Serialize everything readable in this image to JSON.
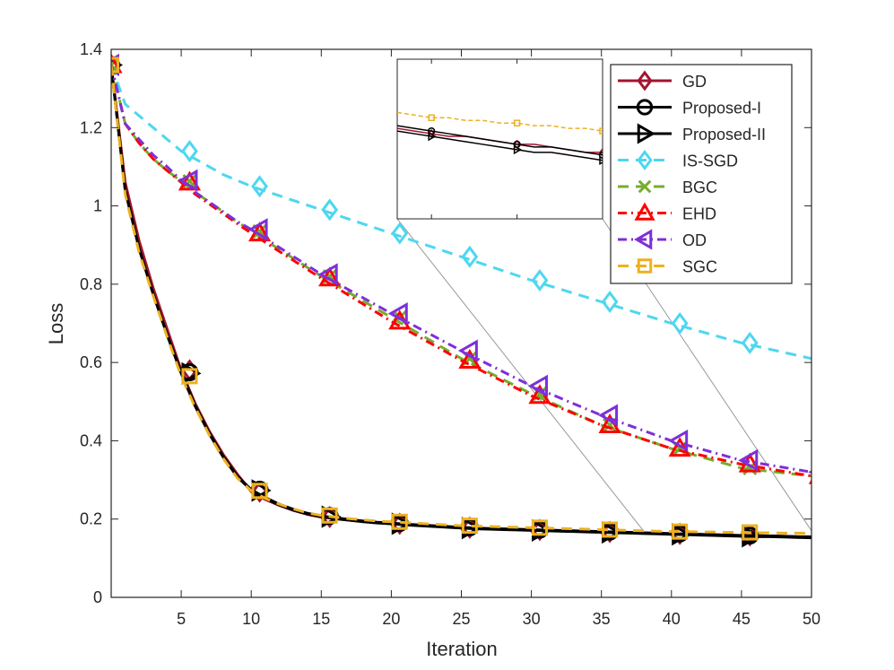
{
  "chart_data": {
    "type": "line",
    "xlabel": "Iteration",
    "ylabel": "Loss",
    "xlim": [
      0,
      50
    ],
    "ylim": [
      0,
      1.4
    ],
    "xticks": [
      5,
      10,
      15,
      20,
      25,
      30,
      35,
      40,
      45,
      50
    ],
    "yticks": [
      0,
      0.2,
      0.4,
      0.6,
      0.8,
      1,
      1.2,
      1.4
    ],
    "ytick_labels": [
      "0",
      "0.2",
      "0.4",
      "0.6",
      "0.8",
      "1",
      "1.2",
      "1.4"
    ],
    "legend_position": "top-right",
    "inset": {
      "xlim": [
        38,
        50
      ],
      "ylim": [
        0.13,
        0.19
      ],
      "position": "top-center"
    },
    "x": [
      0,
      1,
      2,
      3,
      4,
      5,
      6,
      7,
      8,
      9,
      10,
      11,
      12,
      13,
      14,
      15,
      16,
      17,
      18,
      19,
      20,
      21,
      22,
      23,
      24,
      25,
      26,
      27,
      28,
      29,
      30,
      31,
      32,
      33,
      34,
      35,
      36,
      37,
      38,
      39,
      40,
      41,
      42,
      43,
      44,
      45,
      46,
      47,
      48,
      49,
      50
    ],
    "marker_x": [
      0,
      5,
      10,
      15,
      20,
      25,
      30,
      35,
      40,
      45,
      50
    ],
    "series": [
      {
        "name": "GD",
        "color": "#a2142f",
        "dash": "",
        "marker": "diamond",
        "values": [
          1.36,
          1.06,
          0.91,
          0.79,
          0.685,
          0.58,
          0.495,
          0.425,
          0.365,
          0.315,
          0.27,
          0.25,
          0.235,
          0.222,
          0.212,
          0.205,
          0.201,
          0.197,
          0.194,
          0.191,
          0.188,
          0.186,
          0.184,
          0.182,
          0.18,
          0.178,
          0.176,
          0.175,
          0.174,
          0.173,
          0.172,
          0.171,
          0.17,
          0.169,
          0.168,
          0.167,
          0.166,
          0.165,
          0.164,
          0.163,
          0.162,
          0.161,
          0.161,
          0.16,
          0.159,
          0.158,
          0.158,
          0.157,
          0.156,
          0.155,
          0.155
        ]
      },
      {
        "name": "Proposed-I",
        "color": "#000000",
        "dash": "",
        "marker": "circle",
        "values": [
          1.36,
          1.04,
          0.89,
          0.775,
          0.67,
          0.575,
          0.49,
          0.42,
          0.36,
          0.31,
          0.275,
          0.255,
          0.238,
          0.225,
          0.215,
          0.208,
          0.203,
          0.199,
          0.195,
          0.192,
          0.19,
          0.187,
          0.185,
          0.183,
          0.181,
          0.179,
          0.177,
          0.176,
          0.175,
          0.174,
          0.173,
          0.172,
          0.171,
          0.17,
          0.169,
          0.168,
          0.167,
          0.166,
          0.165,
          0.164,
          0.163,
          0.162,
          0.161,
          0.16,
          0.159,
          0.158,
          0.157,
          0.157,
          0.156,
          0.155,
          0.154
        ]
      },
      {
        "name": "Proposed-II",
        "color": "#000000",
        "dash": "",
        "marker": "triangle-right",
        "values": [
          1.36,
          1.04,
          0.89,
          0.775,
          0.67,
          0.572,
          0.488,
          0.418,
          0.358,
          0.308,
          0.273,
          0.253,
          0.236,
          0.223,
          0.213,
          0.206,
          0.201,
          0.197,
          0.193,
          0.19,
          0.188,
          0.185,
          0.183,
          0.181,
          0.179,
          0.177,
          0.175,
          0.174,
          0.173,
          0.172,
          0.171,
          0.17,
          0.169,
          0.168,
          0.167,
          0.166,
          0.165,
          0.164,
          0.163,
          0.162,
          0.161,
          0.16,
          0.159,
          0.158,
          0.157,
          0.156,
          0.155,
          0.155,
          0.154,
          0.153,
          0.152
        ]
      },
      {
        "name": "IS-SGD",
        "color": "#4dd7f0",
        "dash": "12,8",
        "marker": "diamond",
        "values": [
          1.36,
          1.26,
          1.23,
          1.2,
          1.17,
          1.14,
          1.12,
          1.1,
          1.08,
          1.065,
          1.05,
          1.038,
          1.026,
          1.014,
          1.002,
          0.99,
          0.978,
          0.966,
          0.954,
          0.942,
          0.93,
          0.918,
          0.906,
          0.894,
          0.882,
          0.87,
          0.858,
          0.846,
          0.834,
          0.822,
          0.81,
          0.799,
          0.788,
          0.777,
          0.766,
          0.755,
          0.744,
          0.733,
          0.722,
          0.711,
          0.7,
          0.69,
          0.68,
          0.67,
          0.66,
          0.65,
          0.642,
          0.634,
          0.626,
          0.618,
          0.61
        ]
      },
      {
        "name": "BGC",
        "color": "#77ac30",
        "dash": "12,8",
        "marker": "cross",
        "values": [
          1.36,
          1.21,
          1.16,
          1.12,
          1.09,
          1.063,
          1.035,
          1.01,
          0.985,
          0.96,
          0.935,
          0.912,
          0.889,
          0.866,
          0.843,
          0.82,
          0.799,
          0.778,
          0.757,
          0.736,
          0.715,
          0.694,
          0.673,
          0.652,
          0.631,
          0.61,
          0.592,
          0.574,
          0.556,
          0.538,
          0.52,
          0.504,
          0.488,
          0.472,
          0.456,
          0.44,
          0.428,
          0.416,
          0.404,
          0.392,
          0.38,
          0.37,
          0.36,
          0.35,
          0.34,
          0.33,
          0.326,
          0.322,
          0.318,
          0.314,
          0.31
        ]
      },
      {
        "name": "EHD",
        "color": "#ff0000",
        "dash": "10,5,2,5",
        "marker": "triangle-up",
        "values": [
          1.36,
          1.21,
          1.16,
          1.12,
          1.09,
          1.06,
          1.03,
          1.005,
          0.98,
          0.955,
          0.93,
          0.907,
          0.884,
          0.861,
          0.838,
          0.815,
          0.793,
          0.771,
          0.749,
          0.727,
          0.705,
          0.685,
          0.665,
          0.645,
          0.625,
          0.605,
          0.587,
          0.569,
          0.551,
          0.533,
          0.515,
          0.5,
          0.485,
          0.47,
          0.455,
          0.44,
          0.428,
          0.416,
          0.404,
          0.392,
          0.38,
          0.372,
          0.364,
          0.356,
          0.348,
          0.34,
          0.334,
          0.328,
          0.322,
          0.316,
          0.31
        ]
      },
      {
        "name": "OD",
        "color": "#7e2fd9",
        "dash": "10,5,2,5",
        "marker": "triangle-left",
        "values": [
          1.36,
          1.21,
          1.17,
          1.13,
          1.1,
          1.065,
          1.035,
          1.01,
          0.985,
          0.96,
          0.94,
          0.917,
          0.894,
          0.871,
          0.848,
          0.825,
          0.805,
          0.785,
          0.765,
          0.745,
          0.725,
          0.706,
          0.687,
          0.668,
          0.649,
          0.63,
          0.612,
          0.594,
          0.576,
          0.558,
          0.54,
          0.525,
          0.51,
          0.495,
          0.48,
          0.465,
          0.452,
          0.439,
          0.426,
          0.413,
          0.4,
          0.39,
          0.38,
          0.37,
          0.36,
          0.35,
          0.344,
          0.338,
          0.332,
          0.326,
          0.32
        ]
      },
      {
        "name": "SGC",
        "color": "#edb120",
        "dash": "12,8",
        "marker": "square",
        "values": [
          1.36,
          1.03,
          0.88,
          0.77,
          0.665,
          0.565,
          0.485,
          0.415,
          0.355,
          0.305,
          0.272,
          0.253,
          0.238,
          0.226,
          0.216,
          0.209,
          0.205,
          0.201,
          0.198,
          0.195,
          0.193,
          0.191,
          0.189,
          0.187,
          0.185,
          0.183,
          0.182,
          0.181,
          0.18,
          0.179,
          0.178,
          0.177,
          0.176,
          0.175,
          0.174,
          0.173,
          0.172,
          0.171,
          0.17,
          0.169,
          0.168,
          0.168,
          0.167,
          0.167,
          0.166,
          0.166,
          0.165,
          0.165,
          0.164,
          0.164,
          0.163
        ]
      }
    ]
  }
}
